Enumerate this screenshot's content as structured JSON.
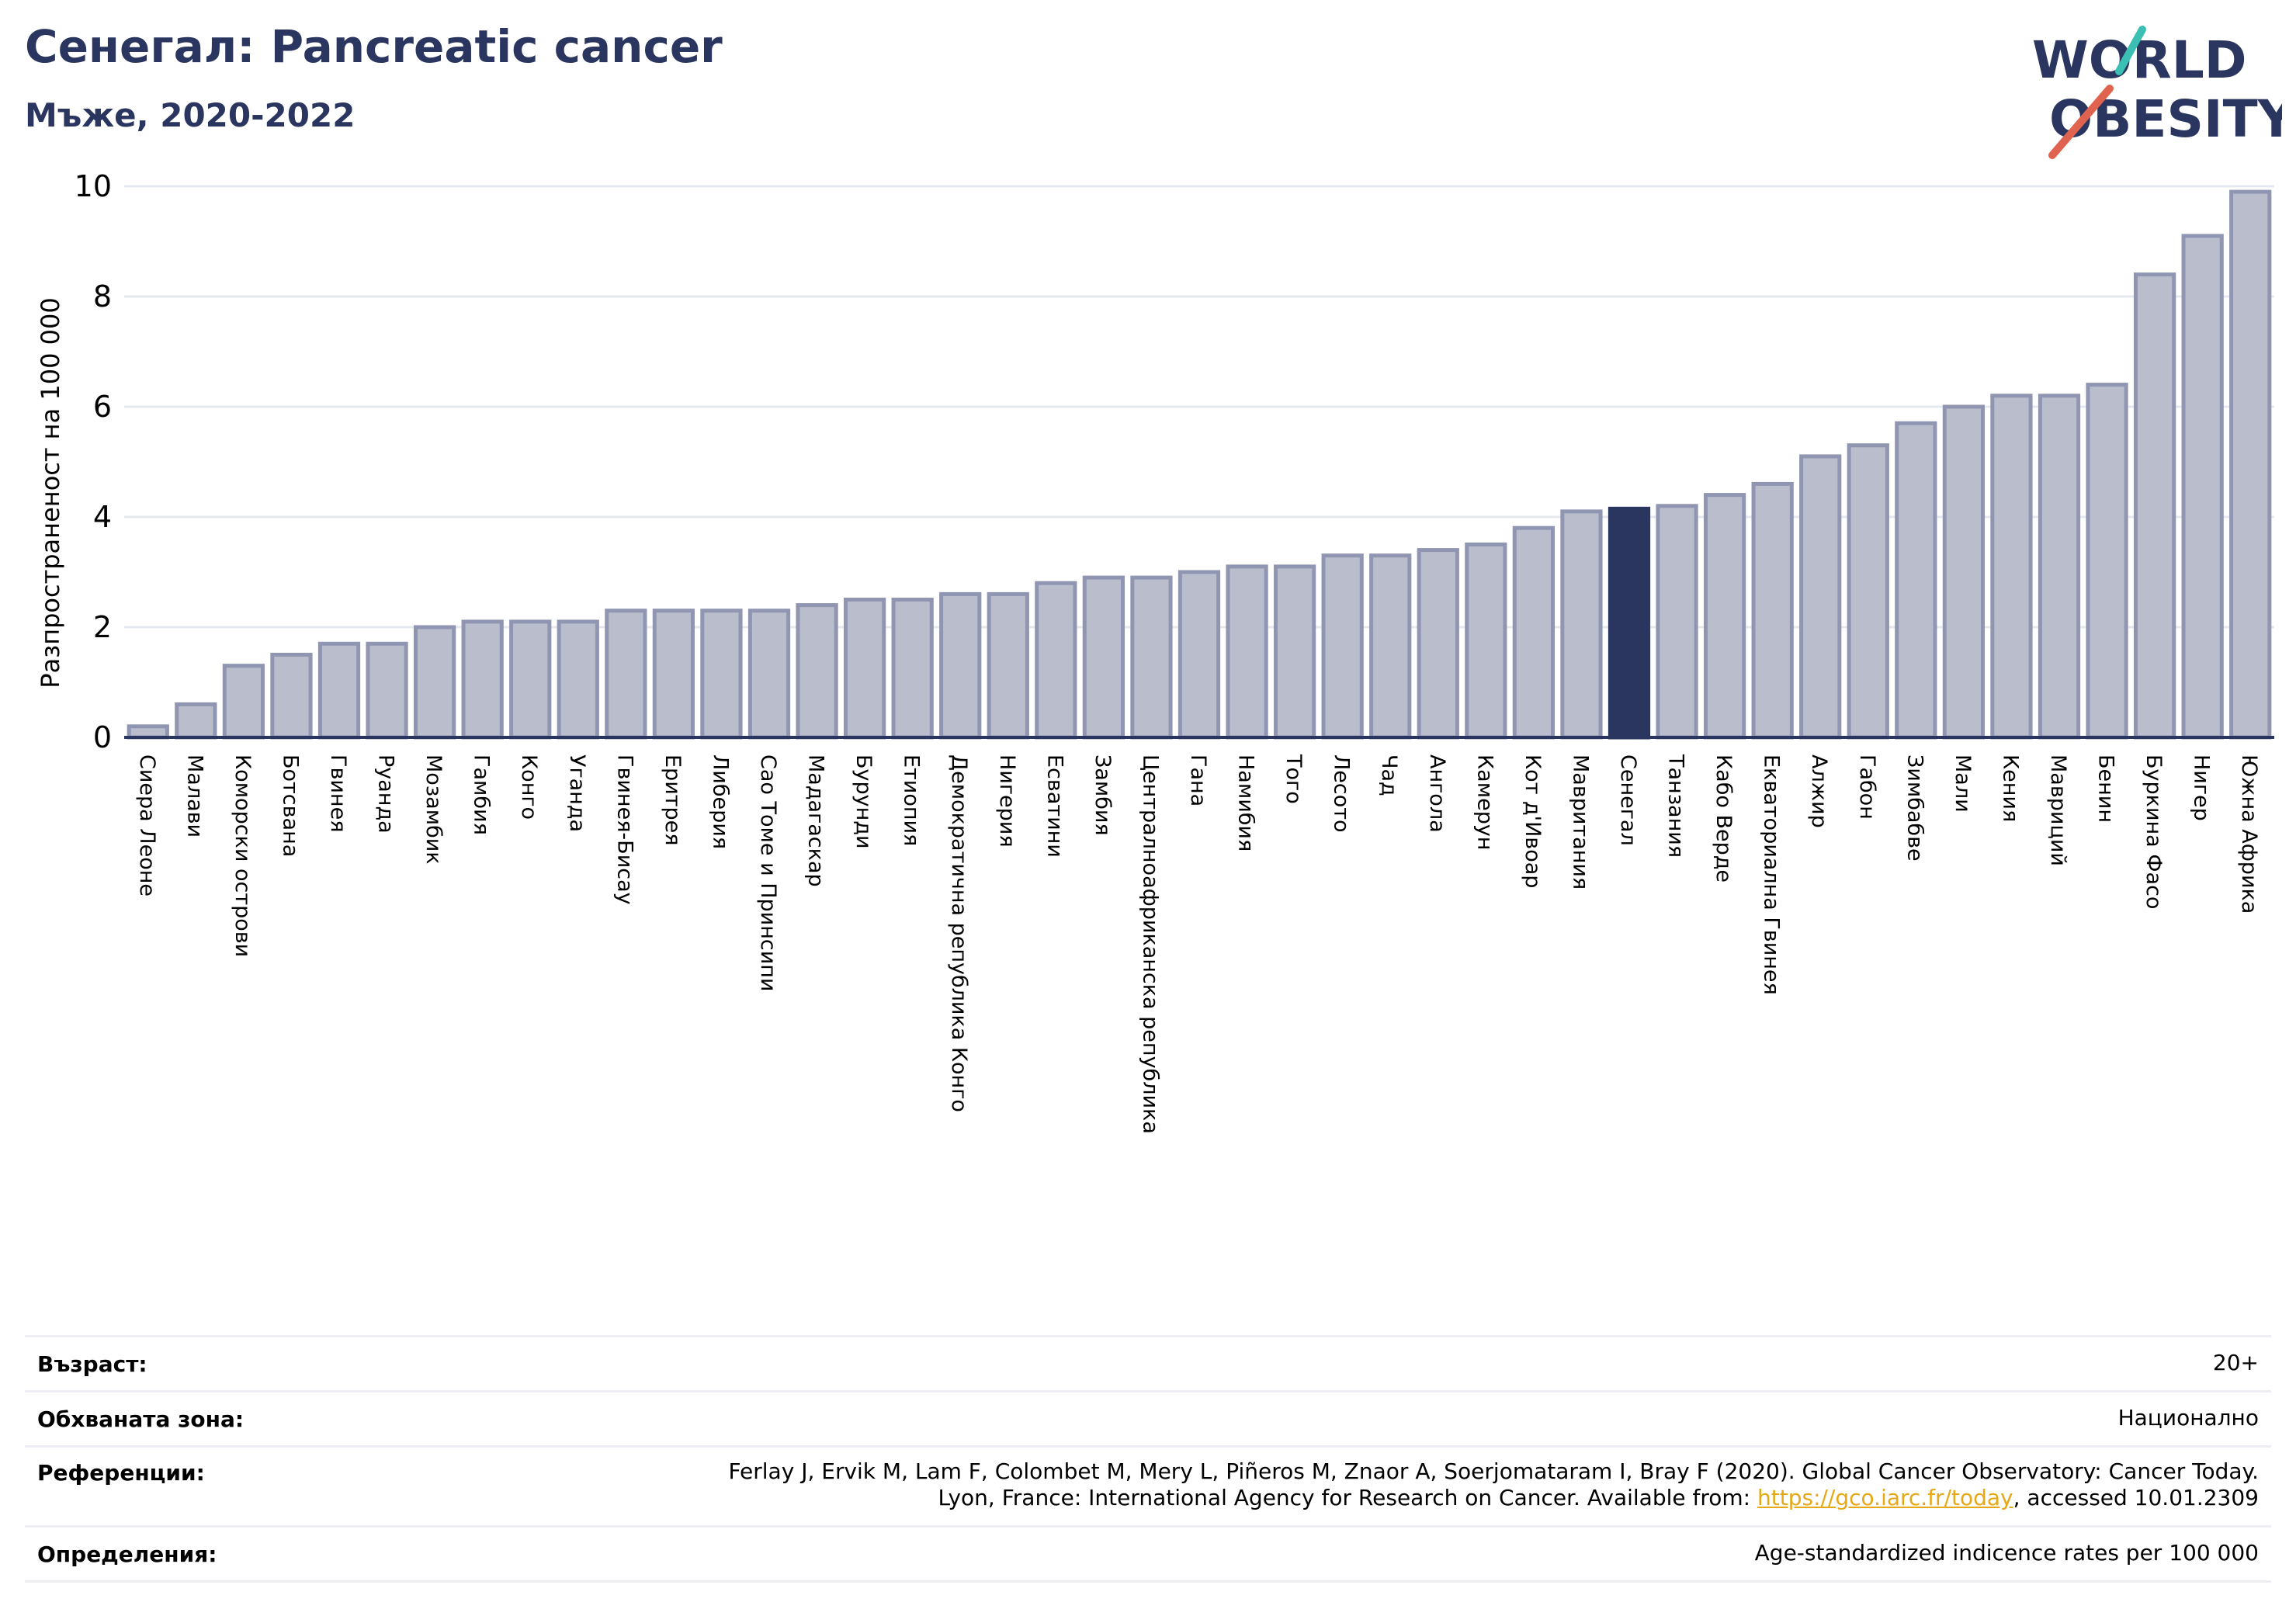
{
  "header": {
    "title": "Сенегал: Pancreatic cancer",
    "subtitle": "Мъже, 2020-2022"
  },
  "logo": {
    "line1": "WORLD",
    "line2": "OBESITY"
  },
  "chart_data": {
    "type": "bar",
    "ylabel": "Разпространеност  на 100 000",
    "ylim": [
      0,
      10
    ],
    "yticks": [
      0,
      2,
      4,
      6,
      8,
      10
    ],
    "grid": true,
    "highlight": "Сенегал",
    "colors": {
      "bar": "#b9bdcc",
      "bar_edge": "#9096b2",
      "highlight": "#2b3660",
      "grid": "#e6e8ef"
    },
    "categories": [
      "Сиера Леоне",
      "Малави",
      "Коморски острови",
      "Ботсвана",
      "Гвинея",
      "Руанда",
      "Мозамбик",
      "Гамбия",
      "Конго",
      "Уганда",
      "Гвинея-Бисау",
      "Еритрея",
      "Либерия",
      "Сао Томе и Принсипи",
      "Мадагаскар",
      "Бурунди",
      "Етиопия",
      "Демократична република Конго",
      "Нигерия",
      "Есватини",
      "Замбия",
      "Централноафриканска република",
      "Гана",
      "Намибия",
      "Того",
      "Лесото",
      "Чад",
      "Ангола",
      "Камерун",
      "Кот д'Ивоар",
      "Мавритания",
      "Сенегал",
      "Танзания",
      "Кабо Верде",
      "Екваториална Гвинея",
      "Алжир",
      "Габон",
      "Зимбабве",
      "Мали",
      "Кения",
      "Мавриций",
      "Бенин",
      "Буркина Фасо",
      "Нигер",
      "Южна Африка"
    ],
    "values": [
      0.2,
      0.6,
      1.3,
      1.5,
      1.7,
      1.7,
      2.0,
      2.1,
      2.1,
      2.1,
      2.3,
      2.3,
      2.3,
      2.3,
      2.4,
      2.5,
      2.5,
      2.6,
      2.6,
      2.8,
      2.9,
      2.9,
      3.0,
      3.1,
      3.1,
      3.3,
      3.3,
      3.4,
      3.5,
      3.8,
      4.1,
      4.15,
      4.2,
      4.4,
      4.6,
      5.1,
      5.3,
      5.7,
      6.0,
      6.2,
      6.2,
      6.4,
      8.4,
      9.1,
      9.9
    ]
  },
  "meta": {
    "age_label": "Възраст:",
    "age_value": "20+",
    "area_label": "Обхваната зона:",
    "area_value": "Национално",
    "ref_label": "Референции:",
    "ref_line1": "Ferlay J, Ervik M, Lam F, Colombet M, Mery L, Piñeros M, Znaor A, Soerjomataram I, Bray F (2020). Global Cancer Observatory: Cancer Today.",
    "ref_line2_pre": "Lyon, France: International Agency for Research on Cancer. Available from: ",
    "ref_link": "https://gco.iarc.fr/today",
    "ref_line2_post": ", accessed 10.01.2309",
    "def_label": "Определения:",
    "def_value": "Age-standardized indicence rates per 100 000"
  }
}
